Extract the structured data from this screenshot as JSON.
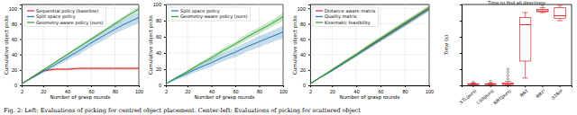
{
  "chart_data": [
    {
      "type": "line",
      "x_label": "Number of grasp rounds",
      "y_label": "Cumulative object picks",
      "x": [
        2,
        10,
        20,
        30,
        40,
        50,
        60,
        70,
        80,
        90,
        100
      ],
      "xlim": [
        2,
        100
      ],
      "xticks": [
        2,
        20,
        40,
        60,
        80,
        100
      ],
      "ylim": [
        0,
        105
      ],
      "yticks": [
        0,
        20,
        40,
        60,
        80,
        100
      ],
      "grid": true,
      "legend": "upper left",
      "series": [
        {
          "name": "Sequential policy (baseline)",
          "color": "#d62728",
          "values": [
            2,
            10,
            19,
            21,
            21,
            22,
            22,
            22,
            22,
            22,
            22
          ],
          "error": [
            0.3,
            1,
            1.5,
            1.5,
            1.5,
            1.5,
            1.5,
            1.5,
            1.5,
            1.5,
            1.5
          ]
        },
        {
          "name": "Split space policy",
          "color": "#1f77b4",
          "values": [
            2,
            9,
            18,
            27,
            36,
            45,
            55,
            64,
            73,
            81,
            88
          ],
          "error": [
            0.5,
            1,
            2,
            3,
            4,
            5,
            5,
            6,
            6,
            7,
            7
          ]
        },
        {
          "name": "Geometry-aware policy (ours)",
          "color": "#2ca02c",
          "values": [
            2,
            10,
            20,
            30,
            40,
            50,
            60,
            70,
            80,
            90,
            99
          ],
          "error": [
            0.3,
            0.5,
            1,
            1,
            1.5,
            2,
            2,
            2,
            2.5,
            2.5,
            3
          ]
        }
      ]
    },
    {
      "type": "line",
      "x_label": "Number of grasp rounds",
      "y_label": "Cumulative object picks",
      "x": [
        2,
        10,
        20,
        30,
        40,
        50,
        60,
        70,
        80,
        90,
        100
      ],
      "xlim": [
        2,
        100
      ],
      "xticks": [
        2,
        20,
        40,
        60,
        80,
        100
      ],
      "ylim": [
        0,
        100
      ],
      "yticks": [
        0,
        20,
        40,
        60,
        80,
        100
      ],
      "grid": true,
      "legend": "upper left",
      "series": [
        {
          "name": "Split space policy",
          "color": "#1f77b4",
          "values": [
            2,
            8,
            15,
            22,
            28,
            35,
            41,
            48,
            54,
            60,
            66
          ],
          "error": [
            0.5,
            2,
            3,
            4,
            5,
            5,
            6,
            6,
            7,
            7,
            8
          ]
        },
        {
          "name": "Geometry-aware policy (ours)",
          "color": "#2ca02c",
          "values": [
            2,
            9,
            17,
            26,
            34,
            43,
            51,
            60,
            68,
            76,
            85
          ],
          "error": [
            0.5,
            1,
            2,
            2,
            3,
            3,
            3,
            4,
            4,
            4,
            5
          ]
        }
      ]
    },
    {
      "type": "line",
      "x_label": "Number of grasp rounds",
      "y_label": "Cumulative object picks",
      "x": [
        2,
        10,
        20,
        30,
        40,
        50,
        60,
        70,
        80,
        90,
        100
      ],
      "xlim": [
        2,
        100
      ],
      "xticks": [
        2,
        20,
        40,
        60,
        80,
        100
      ],
      "ylim": [
        0,
        105
      ],
      "yticks": [
        0,
        20,
        40,
        60,
        80,
        100
      ],
      "grid": true,
      "legend": "upper left",
      "series": [
        {
          "name": "Distance aware matrix",
          "color": "#d62728",
          "values": [
            2,
            10,
            20,
            30,
            40,
            50,
            60,
            70,
            80,
            90,
            100
          ],
          "error": [
            0.5,
            1,
            1.5,
            2,
            2,
            2.5,
            2.5,
            3,
            3,
            3,
            3
          ]
        },
        {
          "name": "Quality matrix",
          "color": "#1f77b4",
          "values": [
            2,
            10,
            19,
            29,
            39,
            49,
            59,
            69,
            79,
            89,
            99
          ],
          "error": [
            0.5,
            1,
            1.5,
            2,
            2,
            2.5,
            2.5,
            3,
            3,
            3,
            3
          ]
        },
        {
          "name": "Kinematic feasibility",
          "color": "#2ca02c",
          "values": [
            2,
            10,
            20,
            30,
            40,
            51,
            61,
            71,
            81,
            91,
            101
          ],
          "error": [
            0.5,
            1,
            1.5,
            2,
            2,
            2.5,
            2.5,
            3,
            3,
            3,
            3
          ]
        }
      ]
    },
    {
      "type": "box",
      "title": "Time to find all directions",
      "y_label": "Time (s)",
      "categories": [
        "STL(ours)",
        "LSS(ours)",
        "RRT(ours)",
        "RRT",
        "RRT*",
        "STRIP"
      ],
      "min": [
        0.05,
        0.05,
        0.05,
        0.9,
        9.0,
        8.0
      ],
      "q1": [
        0.1,
        0.1,
        0.1,
        3.0,
        9.1,
        8.3
      ],
      "median": [
        0.15,
        0.15,
        0.2,
        7.5,
        9.2,
        8.6
      ],
      "q3": [
        0.2,
        0.2,
        0.3,
        8.4,
        9.4,
        9.6
      ],
      "max": [
        0.3,
        0.3,
        0.5,
        9.0,
        9.6,
        9.9
      ],
      "outliers": [
        [
          0.4
        ],
        [
          0.5
        ],
        [
          0.8,
          1.2,
          1.6,
          2.0
        ],
        [],
        [
          9.9
        ],
        []
      ],
      "color": "#d62728",
      "ylim": [
        0,
        10
      ],
      "yticks": [
        0,
        2,
        4,
        6,
        8,
        10
      ],
      "tick_labels": "x"
    }
  ],
  "caption": "Fig. 2: Left: Evaluations of picking for centred object placement. Center-left: Evaluations of picking for scattered object"
}
